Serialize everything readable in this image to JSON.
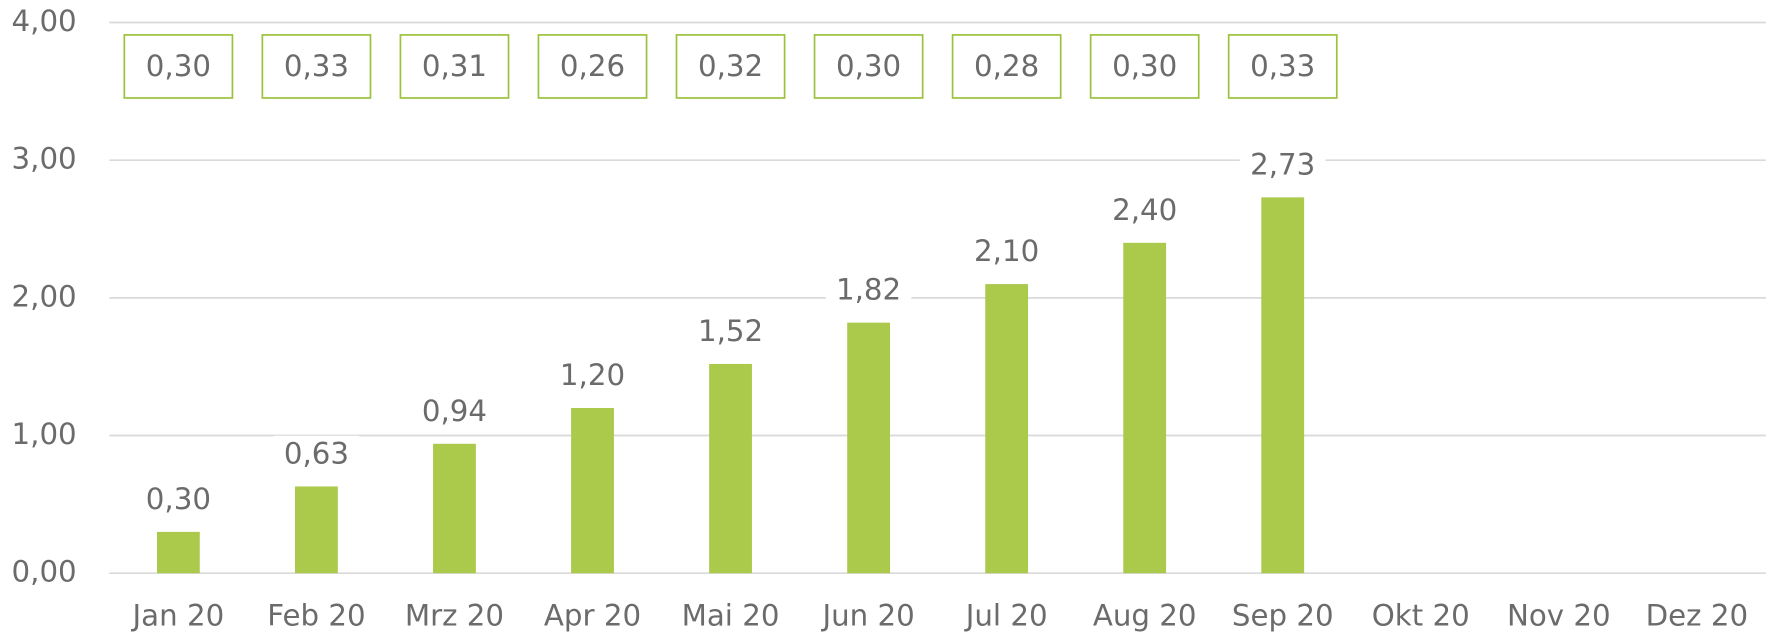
{
  "chart_data": {
    "type": "bar",
    "categories": [
      "Jan 20",
      "Feb 20",
      "Mrz 20",
      "Apr 20",
      "Mai 20",
      "Jun 20",
      "Jul 20",
      "Aug 20",
      "Sep 20",
      "Okt 20",
      "Nov 20",
      "Dez 20"
    ],
    "values": [
      0.3,
      0.63,
      0.94,
      1.2,
      1.52,
      1.82,
      2.1,
      2.4,
      2.73,
      null,
      null,
      null
    ],
    "value_labels": [
      "0,30",
      "0,63",
      "0,94",
      "1,20",
      "1,52",
      "1,82",
      "2,10",
      "2,40",
      "2,73",
      null,
      null,
      null
    ],
    "color": "#abc94a",
    "monthly_values": [
      0.3,
      0.33,
      0.31,
      0.26,
      0.32,
      0.3,
      0.28,
      0.3,
      0.33
    ],
    "monthly_value_labels": [
      "0,30",
      "0,33",
      "0,31",
      "0,26",
      "0,32",
      "0,30",
      "0,28",
      "0,30",
      "0,33"
    ],
    "box_color": "#9bc23c",
    "ylim": [
      0,
      4
    ],
    "yticks": [
      {
        "value": 0,
        "label": "0,00"
      },
      {
        "value": 1,
        "label": "1,00"
      },
      {
        "value": 2,
        "label": "2,00"
      },
      {
        "value": 3,
        "label": "3,00"
      },
      {
        "value": 4,
        "label": "4,00"
      }
    ],
    "grid": true
  }
}
